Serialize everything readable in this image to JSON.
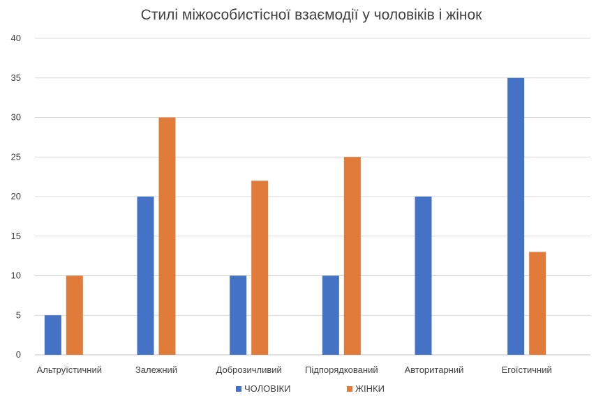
{
  "chart_data": {
    "type": "bar",
    "title": "Стилі міжособистісної взаємодії у чоловіків і жінок",
    "xlabel": "",
    "ylabel": "",
    "ylim": [
      0,
      40
    ],
    "yticks": [
      0,
      5,
      10,
      15,
      20,
      25,
      30,
      35,
      40
    ],
    "grid": true,
    "legend_position": "bottom",
    "categories": [
      "Альтруїстичний",
      "Залежний",
      "Доброзичливий",
      "Підпорядкований",
      "Авторитарний",
      "Егоїстичний"
    ],
    "series": [
      {
        "name": "ЧОЛОВІКИ",
        "color": "#4472C4",
        "values": [
          5,
          20,
          10,
          10,
          20,
          35
        ]
      },
      {
        "name": "ЖІНКИ",
        "color": "#E07B39",
        "values": [
          10,
          30,
          22,
          25,
          0,
          13
        ]
      }
    ]
  }
}
